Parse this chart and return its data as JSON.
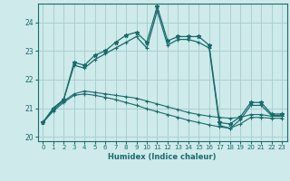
{
  "xlabel": "Humidex (Indice chaleur)",
  "ylabel": "",
  "background_color": "#ceeaea",
  "grid_color": "#aacfcf",
  "line_color": "#1a6b6b",
  "xlim": [
    -0.5,
    23.5
  ],
  "ylim": [
    19.85,
    24.65
  ],
  "yticks": [
    20,
    21,
    22,
    23,
    24
  ],
  "xticks": [
    0,
    1,
    2,
    3,
    4,
    5,
    6,
    7,
    8,
    9,
    10,
    11,
    12,
    13,
    14,
    15,
    16,
    17,
    18,
    19,
    20,
    21,
    22,
    23
  ],
  "lines": [
    {
      "x": [
        0,
        1,
        2,
        3,
        4,
        5,
        6,
        7,
        8,
        9,
        10,
        11,
        12,
        13,
        14,
        15,
        16,
        17,
        18,
        19,
        20,
        21,
        22,
        23
      ],
      "y": [
        20.5,
        21.0,
        21.3,
        22.6,
        22.5,
        22.85,
        23.0,
        23.3,
        23.55,
        23.65,
        23.3,
        24.55,
        23.35,
        23.5,
        23.5,
        23.5,
        23.2,
        20.5,
        20.45,
        20.7,
        21.2,
        21.2,
        20.8,
        20.8
      ],
      "marker": "*",
      "markersize": 3.5,
      "linewidth": 0.9
    },
    {
      "x": [
        0,
        1,
        2,
        3,
        4,
        5,
        6,
        7,
        8,
        9,
        10,
        11,
        12,
        13,
        14,
        15,
        16,
        17,
        18,
        19,
        20,
        21,
        22,
        23
      ],
      "y": [
        20.5,
        21.0,
        21.3,
        22.5,
        22.4,
        22.7,
        22.9,
        23.1,
        23.3,
        23.5,
        23.1,
        24.4,
        23.2,
        23.4,
        23.4,
        23.3,
        23.1,
        20.4,
        20.3,
        20.6,
        21.1,
        21.1,
        20.75,
        20.75
      ],
      "marker": "+",
      "markersize": 3.5,
      "linewidth": 0.9
    },
    {
      "x": [
        0,
        1,
        2,
        3,
        4,
        5,
        6,
        7,
        8,
        9,
        10,
        11,
        12,
        13,
        14,
        15,
        16,
        17,
        18,
        19,
        20,
        21,
        22,
        23
      ],
      "y": [
        20.5,
        20.95,
        21.25,
        21.5,
        21.6,
        21.55,
        21.5,
        21.45,
        21.4,
        21.35,
        21.25,
        21.15,
        21.05,
        20.95,
        20.85,
        20.78,
        20.72,
        20.68,
        20.65,
        20.68,
        20.78,
        20.78,
        20.72,
        20.72
      ],
      "marker": "+",
      "markersize": 2.5,
      "linewidth": 0.8
    },
    {
      "x": [
        0,
        1,
        2,
        3,
        4,
        5,
        6,
        7,
        8,
        9,
        10,
        11,
        12,
        13,
        14,
        15,
        16,
        17,
        18,
        19,
        20,
        21,
        22,
        23
      ],
      "y": [
        20.5,
        20.9,
        21.2,
        21.45,
        21.5,
        21.45,
        21.38,
        21.3,
        21.2,
        21.1,
        20.98,
        20.88,
        20.78,
        20.68,
        20.58,
        20.5,
        20.42,
        20.35,
        20.3,
        20.45,
        20.68,
        20.68,
        20.65,
        20.65
      ],
      "marker": "+",
      "markersize": 2.5,
      "linewidth": 0.8
    }
  ]
}
